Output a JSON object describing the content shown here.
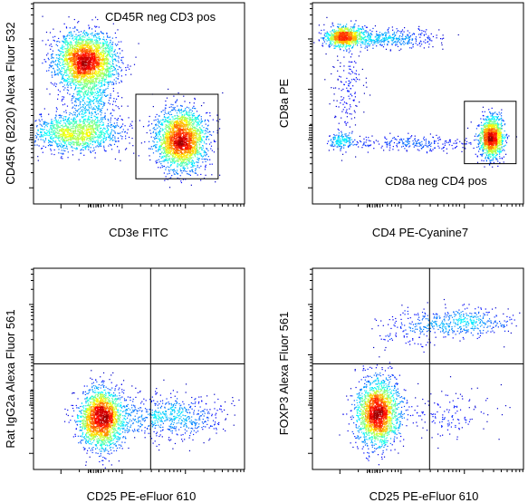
{
  "chart_data": [
    {
      "type": "scatter",
      "subtype": "flow-cytometry-density",
      "xlabel": "CD3e FITC",
      "ylabel": "CD45R (B220) Alexa Fluor 532",
      "xscale": "log",
      "yscale": "log",
      "xlim": [
        0,
        1
      ],
      "ylim": [
        0,
        1
      ],
      "gates": [
        {
          "type": "rectangle",
          "label": "CD45R neg CD3 pos",
          "x": [
            0.485,
            0.875
          ],
          "y": [
            0.125,
            0.545
          ]
        }
      ],
      "populations": [
        {
          "x": 0.25,
          "y": 0.71,
          "sx": 0.07,
          "sy": 0.07,
          "n": 2600
        },
        {
          "x": 0.7,
          "y": 0.32,
          "sx": 0.06,
          "sy": 0.075,
          "n": 2400
        },
        {
          "x": 0.2,
          "y": 0.35,
          "sx": 0.11,
          "sy": 0.045,
          "n": 1300
        },
        {
          "x": 0.27,
          "y": 0.52,
          "sx": 0.06,
          "sy": 0.08,
          "n": 500
        }
      ]
    },
    {
      "type": "scatter",
      "subtype": "flow-cytometry-density",
      "xlabel": "CD4 PE-Cyanine7",
      "ylabel": "CD8a PE",
      "xscale": "log",
      "yscale": "log",
      "xlim": [
        0,
        1
      ],
      "ylim": [
        0,
        1
      ],
      "gates": [
        {
          "type": "rectangle",
          "label": "CD8a neg CD4 pos",
          "x": [
            0.72,
            0.965
          ],
          "y": [
            0.2,
            0.51
          ]
        }
      ],
      "populations": [
        {
          "x": 0.15,
          "y": 0.83,
          "sx": 0.045,
          "sy": 0.025,
          "n": 900
        },
        {
          "x": 0.34,
          "y": 0.82,
          "sx": 0.12,
          "sy": 0.025,
          "n": 450
        },
        {
          "x": 0.85,
          "y": 0.33,
          "sx": 0.028,
          "sy": 0.05,
          "n": 1300
        },
        {
          "x": 0.14,
          "y": 0.31,
          "sx": 0.03,
          "sy": 0.02,
          "n": 160
        },
        {
          "x": 0.5,
          "y": 0.3,
          "sx": 0.16,
          "sy": 0.02,
          "n": 260
        },
        {
          "x": 0.17,
          "y": 0.55,
          "sx": 0.04,
          "sy": 0.12,
          "n": 150
        }
      ]
    },
    {
      "type": "scatter",
      "subtype": "flow-cytometry-density",
      "xlabel": "CD25 PE-eFluor 610",
      "ylabel": "Rat IgG2a Alexa Fluor 561",
      "xscale": "log",
      "yscale": "log",
      "xlim": [
        0,
        1
      ],
      "ylim": [
        0,
        1
      ],
      "quadrant_gate": {
        "x": 0.555,
        "y": 0.525
      },
      "populations": [
        {
          "x": 0.32,
          "y": 0.25,
          "sx": 0.05,
          "sy": 0.075,
          "n": 2200
        },
        {
          "x": 0.64,
          "y": 0.26,
          "sx": 0.13,
          "sy": 0.055,
          "n": 650
        }
      ]
    },
    {
      "type": "scatter",
      "subtype": "flow-cytometry-density",
      "xlabel": "CD25 PE-eFluor 610",
      "ylabel": "FOXP3 Alexa Fluor 561",
      "xscale": "log",
      "yscale": "log",
      "xlim": [
        0,
        1
      ],
      "ylim": [
        0,
        1
      ],
      "quadrant_gate": {
        "x": 0.555,
        "y": 0.525
      },
      "populations": [
        {
          "x": 0.31,
          "y": 0.28,
          "sx": 0.05,
          "sy": 0.08,
          "n": 2100
        },
        {
          "x": 0.72,
          "y": 0.73,
          "sx": 0.12,
          "sy": 0.035,
          "n": 420
        },
        {
          "x": 0.45,
          "y": 0.7,
          "sx": 0.08,
          "sy": 0.05,
          "n": 120
        },
        {
          "x": 0.62,
          "y": 0.27,
          "sx": 0.12,
          "sy": 0.06,
          "n": 150
        }
      ]
    }
  ]
}
